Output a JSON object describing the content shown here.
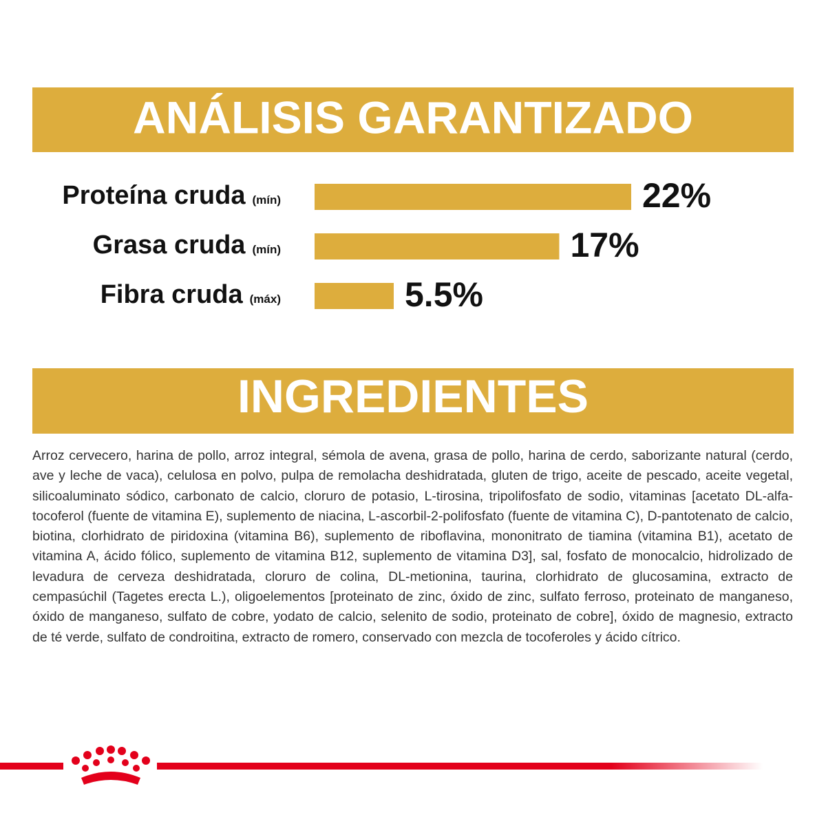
{
  "analysis_title": "ANÁLISIS GARANTIZADO",
  "chart_data": {
    "type": "bar",
    "orientation": "horizontal",
    "color": "#DDAD3D",
    "categories": [
      "Proteína cruda",
      "Grasa cruda",
      "Fibra cruda"
    ],
    "qualifiers": [
      "(mín)",
      "(mín)",
      "(máx)"
    ],
    "values": [
      22,
      17,
      5.5
    ],
    "value_labels": [
      "22%",
      "17%",
      "5.5%"
    ]
  },
  "ingredients": {
    "title": "INGREDIENTES",
    "text": "Arroz cervecero, harina de pollo, arroz integral, sémola de avena, grasa de pollo, harina de cerdo, saborizante natural (cerdo, ave y leche de vaca), celulosa en polvo, pulpa de remolacha deshidratada, gluten de trigo, aceite de pescado, aceite vegetal, silicoaluminato sódico, carbonato de calcio, cloruro de potasio, L-tirosina, tripolifosfato de sodio, vitaminas [acetato DL-alfa-tocoferol (fuente de vitamina E), suplemento de niacina, L-ascorbil-2-polifosfato (fuente de vitamina C), D-pantotenato de calcio, biotina, clorhidrato de piridoxina (vitamina B6), suplemento de riboflavina, mononitrato de tiamina (vitamina B1), acetato de vitamina A, ácido fólico, suplemento de vitamina B12, suplemento de vitamina D3], sal, fosfato de monocalcio, hidrolizado de levadura de cerveza deshidratada, cloruro de colina, DL-metionina, taurina, clorhidrato de glucosamina, extracto de cempasúchil (Tagetes erecta L.), oligoelementos [proteinato de zinc, óxido de zinc, sulfato ferroso, proteinato de manganeso, óxido de manganeso, sulfato de cobre, yodato de calcio, selenito de sodio, proteinato de cobre], óxido de magnesio, extracto de té verde, sulfato de condroitina, extracto de romero, conservado con mezcla de tocoferoles y ácido cítrico."
  }
}
